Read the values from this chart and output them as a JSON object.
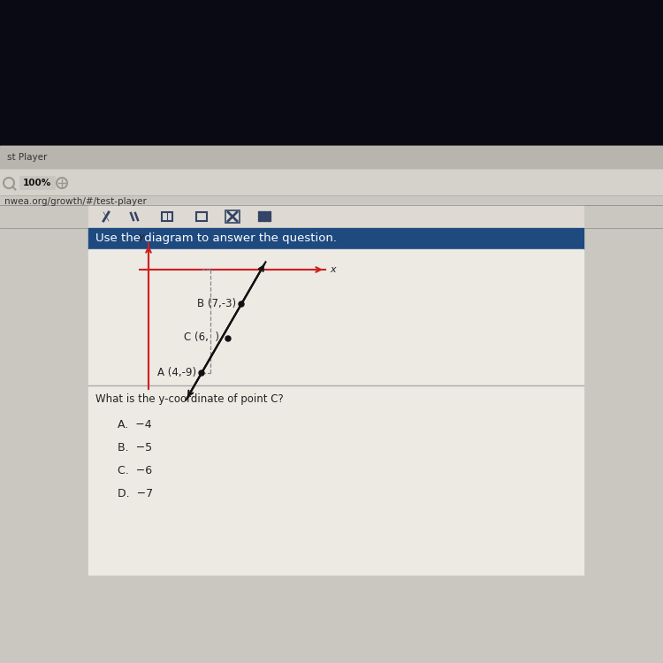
{
  "bg_top_color": "#0d0d18",
  "bg_mid_color": "#c8c5be",
  "bg_main_color": "#d0cdc6",
  "tab_text": "st Player",
  "url_text": "nwea.org/growth/#/test-player",
  "zoom_text": "100%",
  "toolbar_bg": "#e2dfd8",
  "header_bg": "#1e4a80",
  "header_text": "Use the diagram to answer the question.",
  "diagram_bg": "#f0ede8",
  "content_bg": "#ebe8e2",
  "label_A": "A (4,-9)",
  "label_B": "B (7,-3)",
  "label_C": "C (6,  )",
  "question_text": "What is the y-coordinate of point C?",
  "options": [
    "A.  −4",
    "B.  −5",
    "C.  −6",
    "D.  −7"
  ],
  "axis_color": "#cc2222",
  "line_color": "#111111",
  "dot_color": "#111111",
  "dash_color": "#888888",
  "text_color": "#222222"
}
